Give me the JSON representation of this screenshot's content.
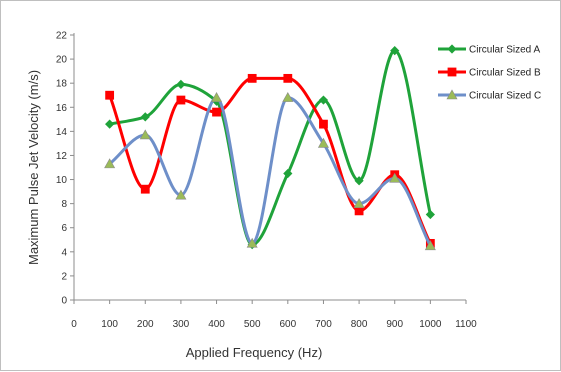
{
  "chart_data": {
    "type": "line",
    "smooth": true,
    "xlabel": "Applied Frequency (Hz)",
    "ylabel": "Maximum Pulse Jet Velocity (m/s)",
    "xlim": [
      0,
      1100
    ],
    "ylim": [
      0,
      22
    ],
    "xticks": [
      0,
      100,
      200,
      300,
      400,
      500,
      600,
      700,
      800,
      900,
      1000,
      1100
    ],
    "yticks": [
      0,
      2,
      4,
      6,
      8,
      10,
      12,
      14,
      16,
      18,
      20,
      22
    ],
    "grid": false,
    "legend_position": "top-right",
    "x": [
      100,
      200,
      300,
      400,
      500,
      600,
      700,
      800,
      900,
      1000
    ],
    "series": [
      {
        "name": "Circular Sized A",
        "color": "#1fa33a",
        "marker": "diamond",
        "values": [
          14.6,
          15.2,
          17.9,
          16.5,
          4.6,
          10.5,
          16.6,
          9.9,
          20.7,
          7.1
        ]
      },
      {
        "name": "Circular Sized B",
        "color": "#ff0000",
        "marker": "square",
        "values": [
          17.0,
          9.2,
          16.6,
          15.6,
          18.4,
          18.4,
          14.6,
          7.4,
          10.4,
          4.7
        ]
      },
      {
        "name": "Circular Sized C",
        "color": "#6e8fc9",
        "marker": "triangle",
        "values": [
          11.3,
          13.7,
          8.7,
          16.8,
          4.7,
          16.8,
          13.0,
          8.0,
          10.1,
          4.5
        ]
      }
    ]
  }
}
